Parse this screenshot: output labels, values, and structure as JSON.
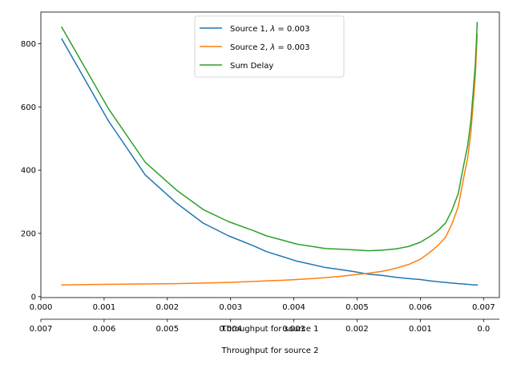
{
  "chart_data": {
    "type": "line",
    "title": "",
    "xlabel": "Throughput for source 1",
    "x2label": "Throughput for source 2",
    "ylabel": "",
    "xlim": [
      0,
      0.00725
    ],
    "x2lim": [
      0.007,
      -0.00025
    ],
    "ylim": [
      -3,
      900
    ],
    "xticks": [
      0.0,
      0.001,
      0.002,
      0.003,
      0.004,
      0.005,
      0.006,
      0.007
    ],
    "xtick_labels": [
      "0.000",
      "0.001",
      "0.002",
      "0.003",
      "0.004",
      "0.005",
      "0.006",
      "0.007"
    ],
    "x2ticks": [
      0.007,
      0.006,
      0.005,
      0.004,
      0.003,
      0.002,
      0.001,
      0.0
    ],
    "x2tick_labels": [
      "0.007",
      "0.006",
      "0.005",
      "0.004",
      "0.003",
      "0.002",
      "0.001",
      "0.0"
    ],
    "yticks": [
      0,
      200,
      400,
      600,
      800
    ],
    "ytick_labels": [
      "0",
      "200",
      "400",
      "600",
      "800"
    ],
    "grid": false,
    "legend_position": "top-center",
    "x": [
      0.00033,
      0.00107,
      0.00165,
      0.00215,
      0.00257,
      0.00297,
      0.00337,
      0.00357,
      0.00383,
      0.00405,
      0.00428,
      0.0045,
      0.00472,
      0.00495,
      0.00518,
      0.0054,
      0.00562,
      0.00582,
      0.006,
      0.00615,
      0.00628,
      0.0064,
      0.0065,
      0.0066,
      0.00668,
      0.00675,
      0.0068,
      0.00684,
      0.00687,
      0.0069
    ],
    "series": [
      {
        "name": "Source 1, λ = 0.003",
        "legend_prefix": "Source 1, ",
        "legend_math": "λ",
        "legend_suffix": " = 0.003",
        "color": "#1f77b4",
        "values": [
          815,
          555,
          385,
          295,
          232,
          192,
          160,
          142,
          126,
          112,
          102,
          92,
          86,
          79,
          71,
          67,
          61,
          57,
          54,
          50,
          47,
          45,
          43,
          41,
          40,
          39,
          38,
          37,
          37,
          37
        ]
      },
      {
        "name": "Source 2, λ = 0.003",
        "legend_prefix": "Source 2, ",
        "legend_math": "λ",
        "legend_suffix": " = 0.003",
        "color": "#ff7f0e",
        "values": [
          37,
          39,
          40,
          41,
          43,
          45,
          48,
          50,
          52,
          54,
          57,
          60,
          64,
          69,
          74,
          80,
          90,
          102,
          118,
          140,
          162,
          188,
          230,
          285,
          370,
          440,
          520,
          620,
          700,
          830
        ]
      },
      {
        "name": "Sum Delay",
        "legend_prefix": "Sum Delay",
        "legend_math": "",
        "legend_suffix": "",
        "color": "#2ca02c",
        "values": [
          852,
          594,
          425,
          336,
          275,
          237,
          208,
          192,
          178,
          166,
          159,
          152,
          150,
          148,
          145,
          147,
          151,
          159,
          172,
          190,
          209,
          233,
          273,
          326,
          410,
          479,
          558,
          657,
          737,
          867
        ]
      }
    ]
  }
}
